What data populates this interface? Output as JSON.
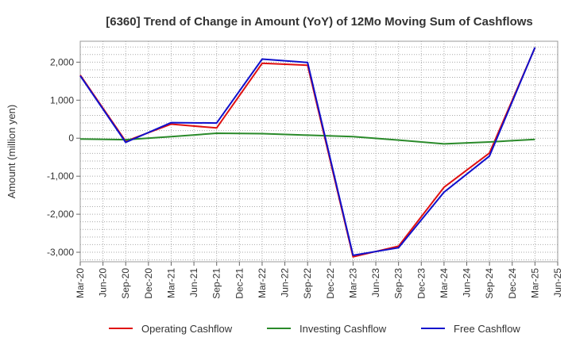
{
  "chart_data": {
    "type": "line",
    "title": "[6360]  Trend of Change in Amount (YoY) of 12Mo Moving Sum of Cashflows",
    "xlabel": "",
    "ylabel": "Amount (million yen)",
    "ylim": [
      -3250,
      2550
    ],
    "grid": true,
    "legend_position": "bottom",
    "x_tick_labels": [
      "Mar-20",
      "Jun-20",
      "Sep-20",
      "Dec-20",
      "Mar-21",
      "Jun-21",
      "Sep-21",
      "Dec-21",
      "Mar-22",
      "Jun-22",
      "Sep-22",
      "Dec-22",
      "Mar-23",
      "Jun-23",
      "Sep-23",
      "Dec-23",
      "Mar-24",
      "Jun-24",
      "Sep-24",
      "Dec-24",
      "Mar-25",
      "Jun-25"
    ],
    "y_ticks": [
      2000,
      1000,
      0,
      -1000,
      -2000,
      -3000
    ],
    "y_tick_labels": [
      "2,000",
      "1,000",
      "0",
      "-1,000",
      "-2,000",
      "-3,000"
    ],
    "series": [
      {
        "name": "Operating Cashflow",
        "color": "#e01010",
        "points": [
          {
            "x": "Mar-20",
            "y": 1660
          },
          {
            "x": "Sep-20",
            "y": -80
          },
          {
            "x": "Mar-21",
            "y": 370
          },
          {
            "x": "Sep-21",
            "y": 270
          },
          {
            "x": "Mar-22",
            "y": 1970
          },
          {
            "x": "Sep-22",
            "y": 1920
          },
          {
            "x": "Mar-23",
            "y": -3120
          },
          {
            "x": "Sep-23",
            "y": -2840
          },
          {
            "x": "Mar-24",
            "y": -1290
          },
          {
            "x": "Sep-24",
            "y": -390
          },
          {
            "x": "Mar-25",
            "y": 2380
          }
        ]
      },
      {
        "name": "Investing Cashflow",
        "color": "#2a8a2a",
        "points": [
          {
            "x": "Mar-20",
            "y": -20
          },
          {
            "x": "Sep-20",
            "y": -40
          },
          {
            "x": "Mar-21",
            "y": 40
          },
          {
            "x": "Sep-21",
            "y": 130
          },
          {
            "x": "Mar-22",
            "y": 120
          },
          {
            "x": "Sep-22",
            "y": 80
          },
          {
            "x": "Mar-23",
            "y": 40
          },
          {
            "x": "Sep-23",
            "y": -50
          },
          {
            "x": "Mar-24",
            "y": -150
          },
          {
            "x": "Sep-24",
            "y": -100
          },
          {
            "x": "Mar-25",
            "y": -30
          }
        ]
      },
      {
        "name": "Free Cashflow",
        "color": "#1010cc",
        "points": [
          {
            "x": "Mar-20",
            "y": 1640
          },
          {
            "x": "Sep-20",
            "y": -110
          },
          {
            "x": "Mar-21",
            "y": 410
          },
          {
            "x": "Sep-21",
            "y": 400
          },
          {
            "x": "Mar-22",
            "y": 2080
          },
          {
            "x": "Sep-22",
            "y": 1990
          },
          {
            "x": "Mar-23",
            "y": -3080
          },
          {
            "x": "Sep-23",
            "y": -2880
          },
          {
            "x": "Mar-24",
            "y": -1420
          },
          {
            "x": "Sep-24",
            "y": -470
          },
          {
            "x": "Mar-25",
            "y": 2390
          }
        ]
      }
    ]
  }
}
